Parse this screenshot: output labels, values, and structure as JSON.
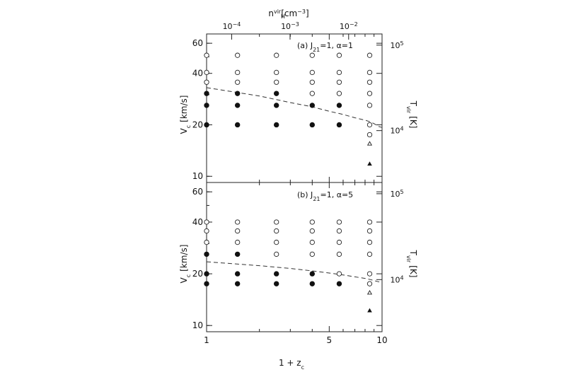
{
  "chart_data": {
    "type": "scatter",
    "x_axis": {
      "label_main": "1 + z",
      "label_sub": "c",
      "scale": "log",
      "range": [
        1,
        10
      ],
      "ticks": [
        {
          "value": 1,
          "label": "1"
        },
        {
          "value": 5,
          "label": "5"
        },
        {
          "value": 10,
          "label": "10"
        }
      ]
    },
    "top_axis": {
      "label_main": "n",
      "label_sub": "H",
      "label_sup": "vir",
      "label_unit_open": "[cm",
      "label_unit_exp": "−3",
      "label_unit_close": "]",
      "ticks": [
        {
          "x_value": 1.39,
          "base": "10",
          "exp": "−4"
        },
        {
          "x_value": 2.99,
          "base": "10",
          "exp": "−3"
        },
        {
          "x_value": 6.45,
          "base": "10",
          "exp": "−2"
        }
      ]
    },
    "panels": [
      {
        "id": "a",
        "title": "(a) J",
        "title_sub": "21",
        "title_rest": "=1, α=1",
        "ylabel_main": "V",
        "ylabel_sub": "c",
        "ylabel_unit": "[km/s]",
        "yscale": "log",
        "ylim": [
          9.2,
          68
        ],
        "yticks": [
          {
            "value": 10,
            "label": "10"
          },
          {
            "value": 20,
            "label": "20"
          },
          {
            "value": 40,
            "label": "40"
          },
          {
            "value": 60,
            "label": "60"
          }
        ],
        "right_axis": {
          "label_main": "T",
          "label_sub": "vir",
          "label_unit": "[K]",
          "ticks": [
            {
              "v": 18.5,
              "base": "10",
              "exp": "4"
            },
            {
              "v": 58.5,
              "base": "10",
              "exp": "5"
            }
          ]
        },
        "series": [
          {
            "marker": "open-circle",
            "points": [
              [
                1,
                51
              ],
              [
                1,
                40.5
              ],
              [
                1,
                35.5
              ],
              [
                1.5,
                51
              ],
              [
                1.5,
                40.5
              ],
              [
                1.5,
                35.5
              ],
              [
                2.5,
                51
              ],
              [
                2.5,
                40.5
              ],
              [
                2.5,
                35.5
              ],
              [
                4,
                51
              ],
              [
                4,
                40.5
              ],
              [
                4,
                35.5
              ],
              [
                4,
                30.5
              ],
              [
                5.7,
                51
              ],
              [
                5.7,
                40.5
              ],
              [
                5.7,
                35.5
              ],
              [
                5.7,
                30.5
              ],
              [
                8.5,
                51
              ],
              [
                8.5,
                40.5
              ],
              [
                8.5,
                35.5
              ],
              [
                8.5,
                30.5
              ],
              [
                8.5,
                26
              ],
              [
                8.5,
                20
              ],
              [
                8.5,
                17.5
              ]
            ]
          },
          {
            "marker": "filled-circle",
            "points": [
              [
                1,
                30.5
              ],
              [
                1,
                26
              ],
              [
                1,
                20
              ],
              [
                1.5,
                30.5
              ],
              [
                1.5,
                26
              ],
              [
                1.5,
                20
              ],
              [
                2.5,
                30.5
              ],
              [
                2.5,
                26
              ],
              [
                2.5,
                20
              ],
              [
                4,
                26
              ],
              [
                4,
                20
              ],
              [
                5.7,
                26
              ],
              [
                5.7,
                20
              ]
            ]
          },
          {
            "marker": "open-triangle",
            "points": [
              [
                8.5,
                15.5
              ]
            ]
          },
          {
            "marker": "filled-triangle",
            "points": [
              [
                8.5,
                11.8
              ]
            ]
          }
        ],
        "threshold_line": {
          "style": "dashed",
          "x": [
            1,
            2,
            3,
            4,
            5,
            6,
            7,
            8,
            8.6,
            9.1,
            9.5,
            10
          ],
          "y": [
            33,
            29.5,
            27,
            25.5,
            24,
            23,
            22,
            21.3,
            20.8,
            20.2,
            19.6,
            19.3
          ]
        }
      },
      {
        "id": "b",
        "title": "(b) J",
        "title_sub": "21",
        "title_rest": "=1, α=5",
        "ylabel_main": "V",
        "ylabel_sub": "c",
        "ylabel_unit": "[km/s]",
        "yscale": "log",
        "ylim": [
          9.2,
          68
        ],
        "yticks": [
          {
            "value": 10,
            "label": "10"
          },
          {
            "value": 20,
            "label": "20"
          },
          {
            "value": 40,
            "label": "40"
          },
          {
            "value": 60,
            "label": "60"
          }
        ],
        "right_axis": {
          "label_main": "T",
          "label_sub": "vir",
          "label_unit": "[K]",
          "ticks": [
            {
              "v": 18.5,
              "base": "10",
              "exp": "4"
            },
            {
              "v": 58.5,
              "base": "10",
              "exp": "5"
            }
          ]
        },
        "series": [
          {
            "marker": "open-circle",
            "points": [
              [
                1,
                40
              ],
              [
                1,
                35.5
              ],
              [
                1,
                30.5
              ],
              [
                1.5,
                40
              ],
              [
                1.5,
                35.5
              ],
              [
                1.5,
                30.5
              ],
              [
                2.5,
                40
              ],
              [
                2.5,
                35.5
              ],
              [
                2.5,
                30.5
              ],
              [
                2.5,
                26
              ],
              [
                4,
                40
              ],
              [
                4,
                35.5
              ],
              [
                4,
                30.5
              ],
              [
                4,
                26
              ],
              [
                5.7,
                40
              ],
              [
                5.7,
                35.5
              ],
              [
                5.7,
                30.5
              ],
              [
                5.7,
                26
              ],
              [
                5.7,
                20
              ],
              [
                8.5,
                40
              ],
              [
                8.5,
                35.5
              ],
              [
                8.5,
                30.5
              ],
              [
                8.5,
                26
              ],
              [
                8.5,
                20
              ],
              [
                8.5,
                17.5
              ]
            ]
          },
          {
            "marker": "filled-circle",
            "points": [
              [
                1,
                26
              ],
              [
                1,
                20
              ],
              [
                1,
                17.5
              ],
              [
                1.5,
                26
              ],
              [
                1.5,
                20
              ],
              [
                1.5,
                17.5
              ],
              [
                2.5,
                20
              ],
              [
                2.5,
                17.5
              ],
              [
                4,
                20
              ],
              [
                4,
                17.5
              ],
              [
                5.7,
                17.5
              ]
            ]
          },
          {
            "marker": "open-triangle",
            "points": [
              [
                8.5,
                15.5
              ]
            ]
          },
          {
            "marker": "filled-triangle",
            "points": [
              [
                8.5,
                12.2
              ]
            ]
          }
        ],
        "threshold_line": {
          "style": "dashed",
          "x": [
            1,
            2,
            3,
            4,
            5,
            6,
            7,
            8,
            8.6,
            9.1,
            9.5,
            10
          ],
          "y": [
            23.5,
            22.3,
            21.5,
            20.8,
            20.2,
            19.7,
            19.2,
            18.8,
            18.5,
            18.2,
            18,
            17.8
          ]
        }
      }
    ]
  }
}
